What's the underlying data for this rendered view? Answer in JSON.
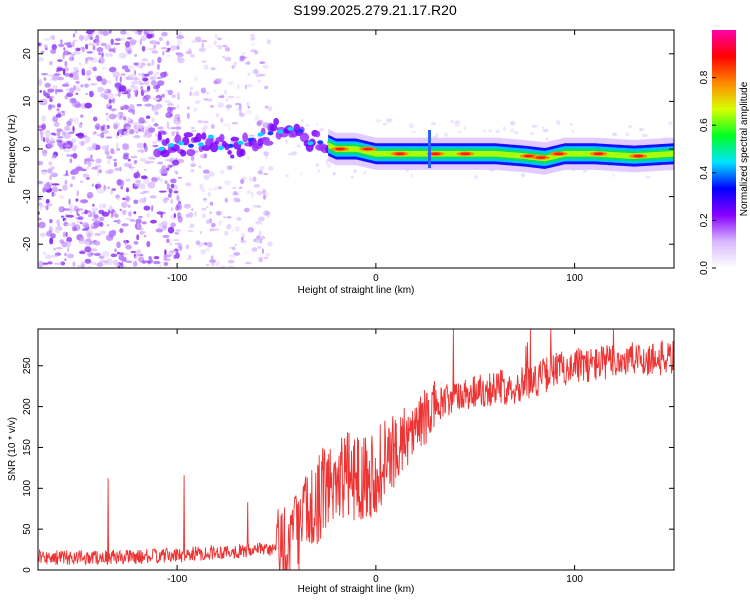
{
  "title": "S199.2025.279.21.17.R20",
  "chart_data": [
    {
      "type": "heatmap",
      "name": "spectrogram",
      "xlabel": "Height of straight line (km)",
      "ylabel": "Frequency (Hz)",
      "xlim": [
        -170,
        150
      ],
      "ylim": [
        -25,
        25
      ],
      "xticks": [
        -100,
        0,
        100
      ],
      "xtick_labels": [
        "-100",
        "0",
        "100"
      ],
      "yticks": [
        -20,
        -10,
        0,
        10,
        20
      ],
      "ytick_labels": [
        "-20",
        "-10",
        "0",
        "10",
        "20"
      ],
      "colorbar": {
        "label": "Normalized spectral amplitude",
        "range": [
          0,
          1
        ],
        "ticks": [
          0.0,
          0.2,
          0.4,
          0.6,
          0.8
        ],
        "tick_labels": [
          "0.0",
          "0.2",
          "0.4",
          "0.6",
          "0.8"
        ],
        "colormap": [
          "#ffffff",
          "#d8b8ff",
          "#8800ff",
          "#0000ff",
          "#00e5ff",
          "#00ff22",
          "#d8ff00",
          "#ff8800",
          "#ff0000",
          "#ff00aa"
        ]
      },
      "description_points": {
        "noise_region_x": [
          -170,
          -55
        ],
        "ridge": [
          [
            -110,
            1
          ],
          [
            -95,
            1
          ],
          [
            -85,
            2
          ],
          [
            -70,
            0
          ],
          [
            -55,
            3
          ],
          [
            -45,
            5
          ],
          [
            -35,
            2
          ],
          [
            -25,
            1
          ],
          [
            -20,
            0
          ],
          [
            -10,
            0
          ],
          [
            0,
            -1
          ],
          [
            20,
            -1
          ],
          [
            40,
            -1
          ],
          [
            60,
            -1
          ],
          [
            75,
            -1.5
          ],
          [
            85,
            -2
          ],
          [
            95,
            -1
          ],
          [
            110,
            -1
          ],
          [
            130,
            -1.5
          ],
          [
            150,
            -1
          ]
        ]
      }
    },
    {
      "type": "line",
      "name": "snr",
      "xlabel": "Height of straight line (km)",
      "ylabel": "SNR (10 * v/v)",
      "xlim": [
        -170,
        150
      ],
      "ylim": [
        0,
        295
      ],
      "xticks": [
        -100,
        0,
        100
      ],
      "xtick_labels": [
        "-100",
        "0",
        "100"
      ],
      "yticks": [
        0,
        50,
        100,
        150,
        200,
        250
      ],
      "ytick_labels": [
        "0",
        "50",
        "100",
        "150",
        "200",
        "250"
      ],
      "color": "#ee3333",
      "trend": {
        "x": [
          -170,
          -120,
          -100,
          -80,
          -50,
          -40,
          -30,
          -20,
          -10,
          0,
          10,
          20,
          30,
          50,
          70,
          80,
          90,
          100,
          110,
          120,
          150
        ],
        "y": [
          15,
          16,
          18,
          22,
          25,
          45,
          85,
          115,
          115,
          120,
          145,
          175,
          200,
          220,
          225,
          232,
          245,
          250,
          252,
          256,
          260
        ]
      }
    }
  ]
}
